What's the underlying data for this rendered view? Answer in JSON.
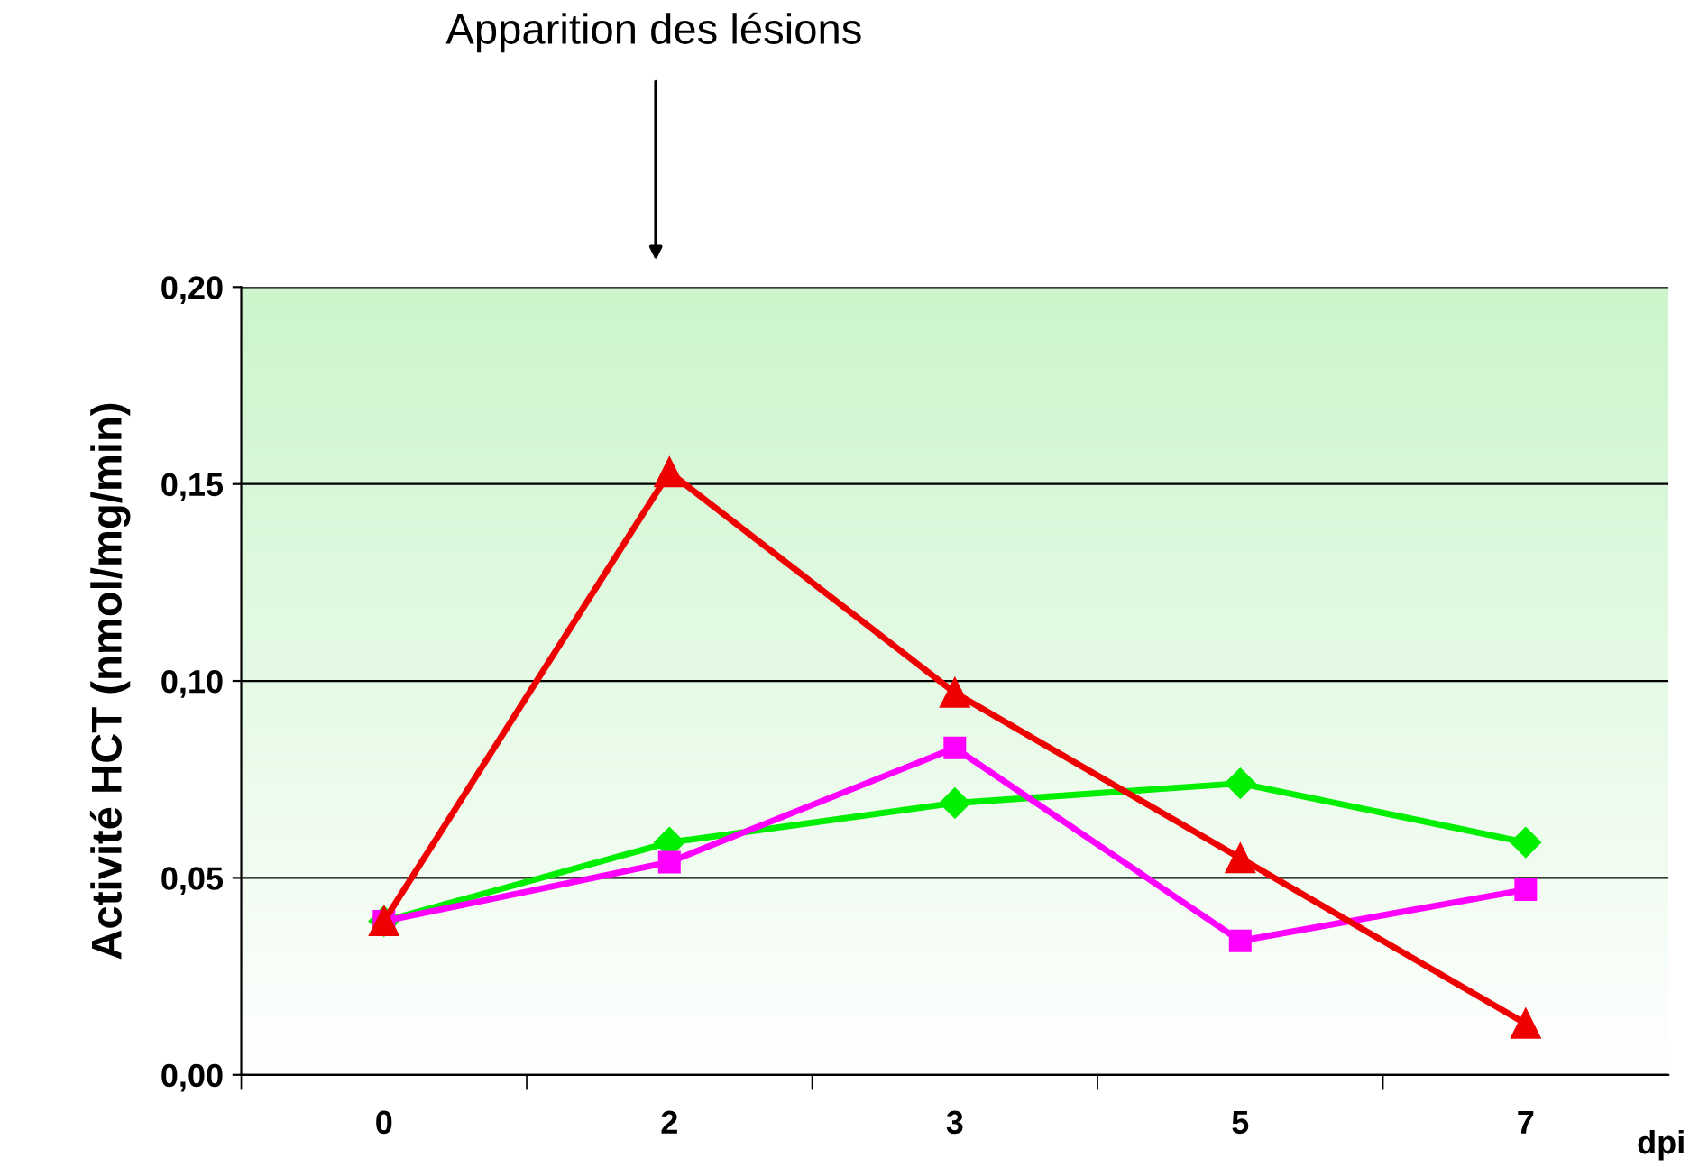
{
  "chart_data": {
    "type": "line",
    "ylabel": "Activité HCT (nmol/mg/min)",
    "xlabel": "dpi",
    "categories": [
      "0",
      "2",
      "3",
      "5",
      "7"
    ],
    "series": [
      {
        "color": "#00ee00",
        "marker": "diamond",
        "values": [
          0.039,
          0.059,
          0.069,
          0.074,
          0.059
        ]
      },
      {
        "color": "#ff00ff",
        "marker": "square",
        "values": [
          0.039,
          0.054,
          0.083,
          0.034,
          0.047
        ]
      },
      {
        "color": "#ee0000",
        "marker": "triangle",
        "values": [
          0.039,
          0.153,
          0.097,
          0.055,
          0.013
        ]
      }
    ],
    "ylim": [
      0,
      0.2
    ],
    "yticks": [
      {
        "value": 0,
        "label": "0,00"
      },
      {
        "value": 0.05,
        "label": "0,05"
      },
      {
        "value": 0.1,
        "label": "0,10"
      },
      {
        "value": 0.15,
        "label": "0,15"
      },
      {
        "value": 0.2,
        "label": "0,20"
      }
    ],
    "grid": "y",
    "legend": false,
    "line_style": "solid",
    "annotations": [
      "Apparition des lésions"
    ]
  }
}
